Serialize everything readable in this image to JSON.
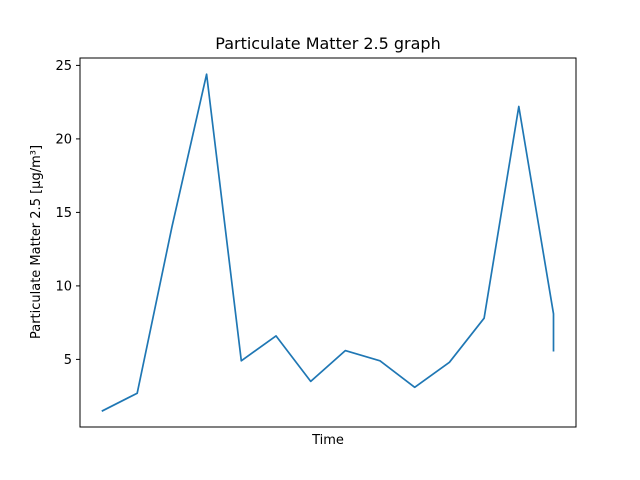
{
  "chart_data": {
    "type": "line",
    "title": "Particulate Matter 2.5 graph",
    "xlabel": "Time",
    "ylabel": "Particulate Matter 2.5 [µg/m³]",
    "ylim": [
      0.4,
      25.5
    ],
    "yticks": [
      5,
      10,
      15,
      20,
      25
    ],
    "xticks": [],
    "grid": false,
    "line_color": "#1f77b4",
    "series": [
      {
        "x": [
          0,
          1,
          2,
          3,
          4,
          5,
          6,
          7,
          8,
          9,
          10,
          11,
          12,
          13,
          13,
          13
        ],
        "values": [
          1.5,
          2.7,
          14.0,
          24.4,
          4.9,
          6.6,
          3.5,
          5.6,
          4.9,
          3.1,
          4.8,
          7.8,
          22.2,
          8.1,
          8.1,
          5.6
        ]
      }
    ]
  }
}
